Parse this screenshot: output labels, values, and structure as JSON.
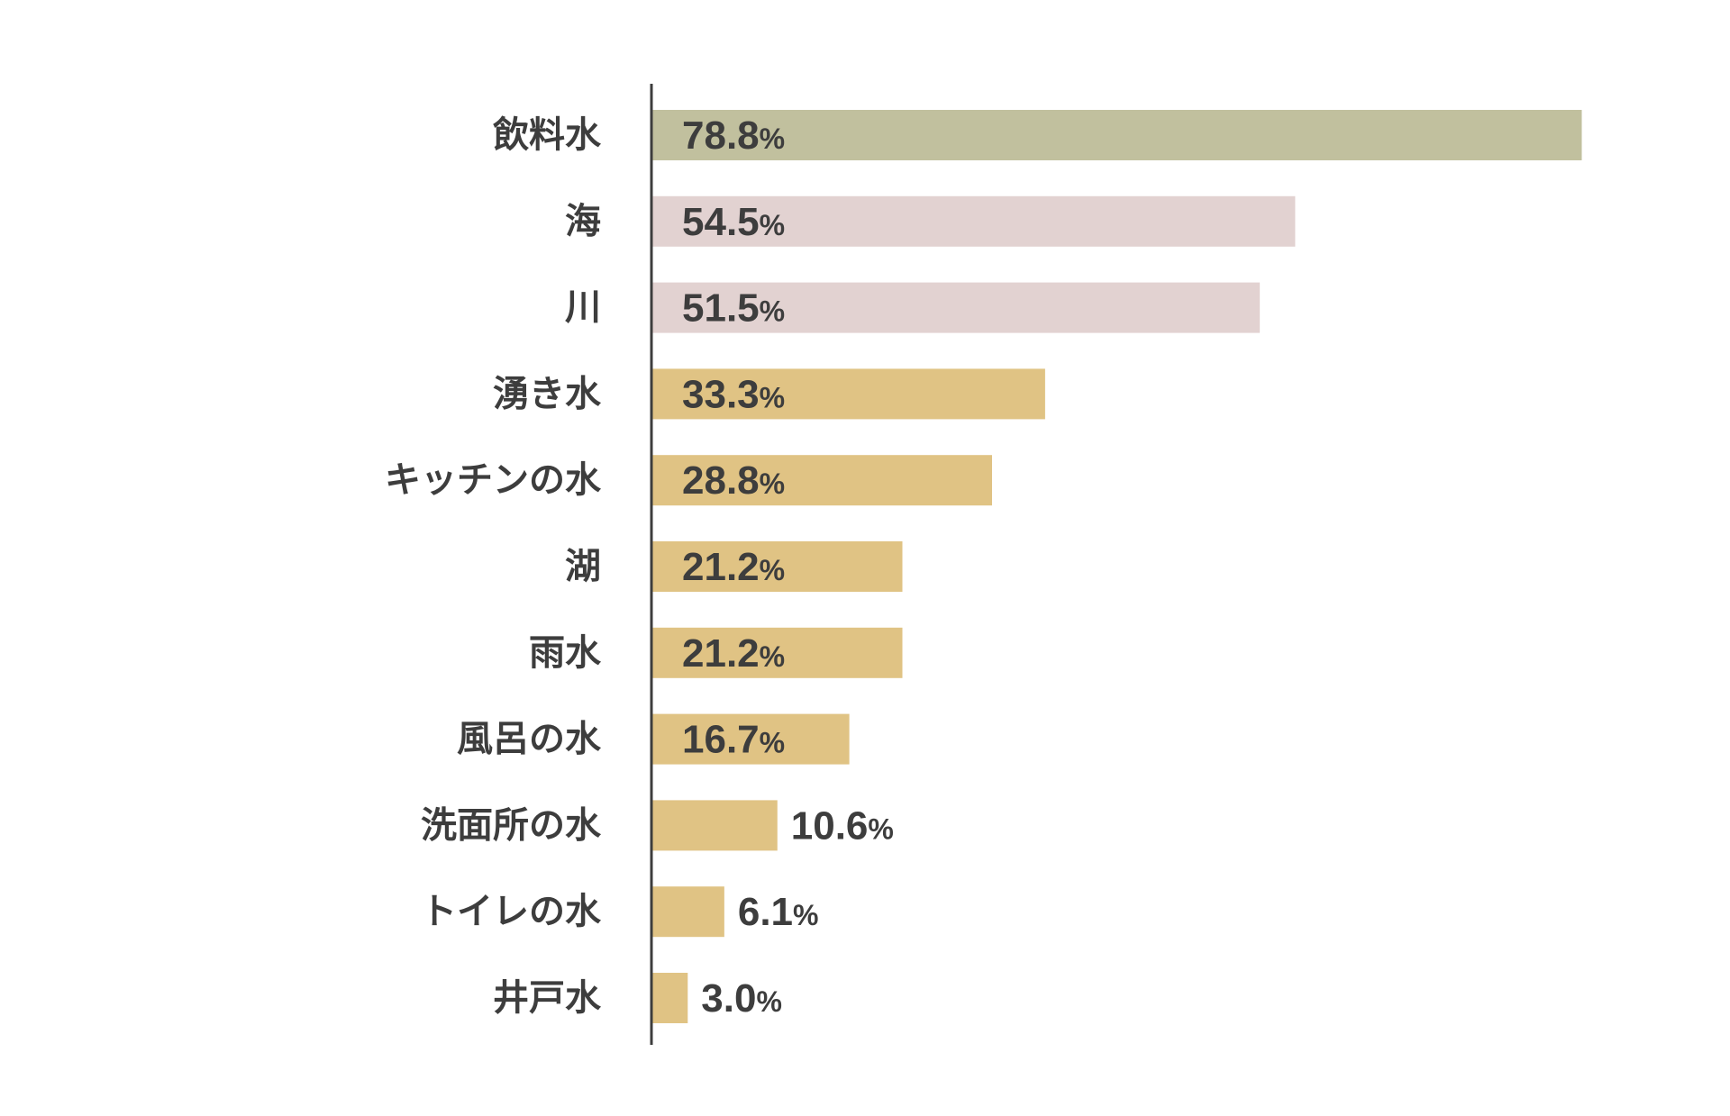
{
  "chart_data": {
    "type": "bar",
    "orientation": "horizontal",
    "categories": [
      "飲料水",
      "海",
      "川",
      "湧き水",
      "キッチンの水",
      "湖",
      "雨水",
      "風呂の水",
      "洗面所の水",
      "トイレの水",
      "井戸水"
    ],
    "values": [
      78.8,
      54.5,
      51.5,
      33.3,
      28.8,
      21.2,
      21.2,
      16.7,
      10.6,
      6.1,
      3.0
    ],
    "value_labels": [
      "78.8",
      "54.5",
      "51.5",
      "33.3",
      "28.8",
      "21.2",
      "21.2",
      "16.7",
      "10.6",
      "6.1",
      "3.0"
    ],
    "unit": "%",
    "bar_colors": [
      "#c1c09e",
      "#e2d2d1",
      "#e2d2d1",
      "#e0c384",
      "#e0c384",
      "#e0c384",
      "#e0c384",
      "#e0c384",
      "#e0c384",
      "#e0c384",
      "#e0c384"
    ],
    "title": "",
    "xlabel": "",
    "ylabel": "",
    "xlim": [
      0,
      100
    ],
    "grid": false,
    "legend": "none"
  }
}
